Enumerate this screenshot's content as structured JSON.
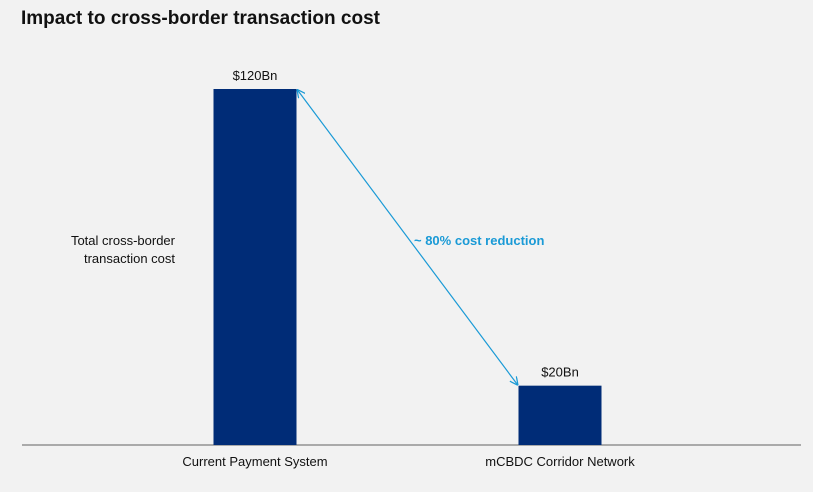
{
  "chart_data": {
    "type": "bar",
    "title": "Impact to cross-border transaction cost",
    "ylabel_lines": [
      "Total cross-border",
      "transaction cost"
    ],
    "categories": [
      "Current Payment System",
      "mCBDC Corridor Network"
    ],
    "values": [
      120,
      20
    ],
    "value_labels": [
      "$120Bn",
      "$20Bn"
    ],
    "unit": "$Bn",
    "ylim": [
      0,
      120
    ],
    "annotation": "~ 80% cost reduction",
    "grid": false,
    "legend": "none",
    "colors": {
      "bar": "#002c77",
      "annotation": "#1a9ad6",
      "axis": "#7f7f7f",
      "background": "#f2f2f2"
    }
  }
}
